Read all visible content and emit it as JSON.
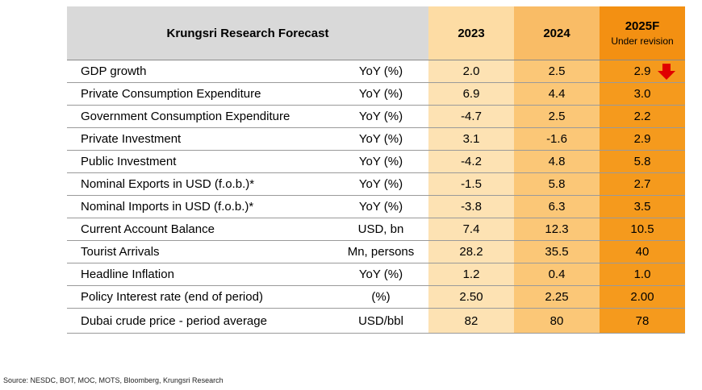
{
  "title": "Krungsri Research Forecast",
  "years": [
    "2023",
    "2024",
    "2025F"
  ],
  "under_revision": "Under revision",
  "rows": [
    {
      "name": "GDP growth",
      "unit": "YoY (%)",
      "v2023": "2.0",
      "v2024": "2.5",
      "v2025": "2.9"
    },
    {
      "name": "Private Consumption Expenditure",
      "unit": "YoY (%)",
      "v2023": "6.9",
      "v2024": "4.4",
      "v2025": "3.0"
    },
    {
      "name": "Government Consumption Expenditure",
      "unit": "YoY (%)",
      "v2023": "-4.7",
      "v2024": "2.5",
      "v2025": "2.2"
    },
    {
      "name": "Private Investment",
      "unit": "YoY (%)",
      "v2023": "3.1",
      "v2024": "-1.6",
      "v2025": "2.9"
    },
    {
      "name": "Public Investment",
      "unit": "YoY (%)",
      "v2023": "-4.2",
      "v2024": "4.8",
      "v2025": "5.8"
    },
    {
      "name": "Nominal Exports in USD (f.o.b.)*",
      "unit": "YoY (%)",
      "v2023": "-1.5",
      "v2024": "5.8",
      "v2025": "2.7"
    },
    {
      "name": "Nominal Imports in USD (f.o.b.)*",
      "unit": "YoY (%)",
      "v2023": "-3.8",
      "v2024": "6.3",
      "v2025": "3.5"
    },
    {
      "name": "Current Account Balance",
      "unit": "USD, bn",
      "v2023": "7.4",
      "v2024": "12.3",
      "v2025": "10.5"
    },
    {
      "name": "Tourist Arrivals",
      "unit": "Mn, persons",
      "v2023": "28.2",
      "v2024": "35.5",
      "v2025": "40"
    },
    {
      "name": "Headline Inflation",
      "unit": "YoY (%)",
      "v2023": "1.2",
      "v2024": "0.4",
      "v2025": "1.0"
    },
    {
      "name": "Policy Interest rate (end of period)",
      "unit": "(%)",
      "v2023": "2.50",
      "v2024": "2.25",
      "v2025": "2.00"
    },
    {
      "name": "Dubai crude price - period average",
      "unit": "USD/bbl",
      "v2023": "82",
      "v2024": "80",
      "v2025": "78"
    }
  ],
  "gdp_revision_arrow": "down-arrow-icon",
  "arrow_color": "#e00000",
  "source": "Source: NESDC, BOT, MOC, MOTS, Bloomberg, Krungsri Research"
}
